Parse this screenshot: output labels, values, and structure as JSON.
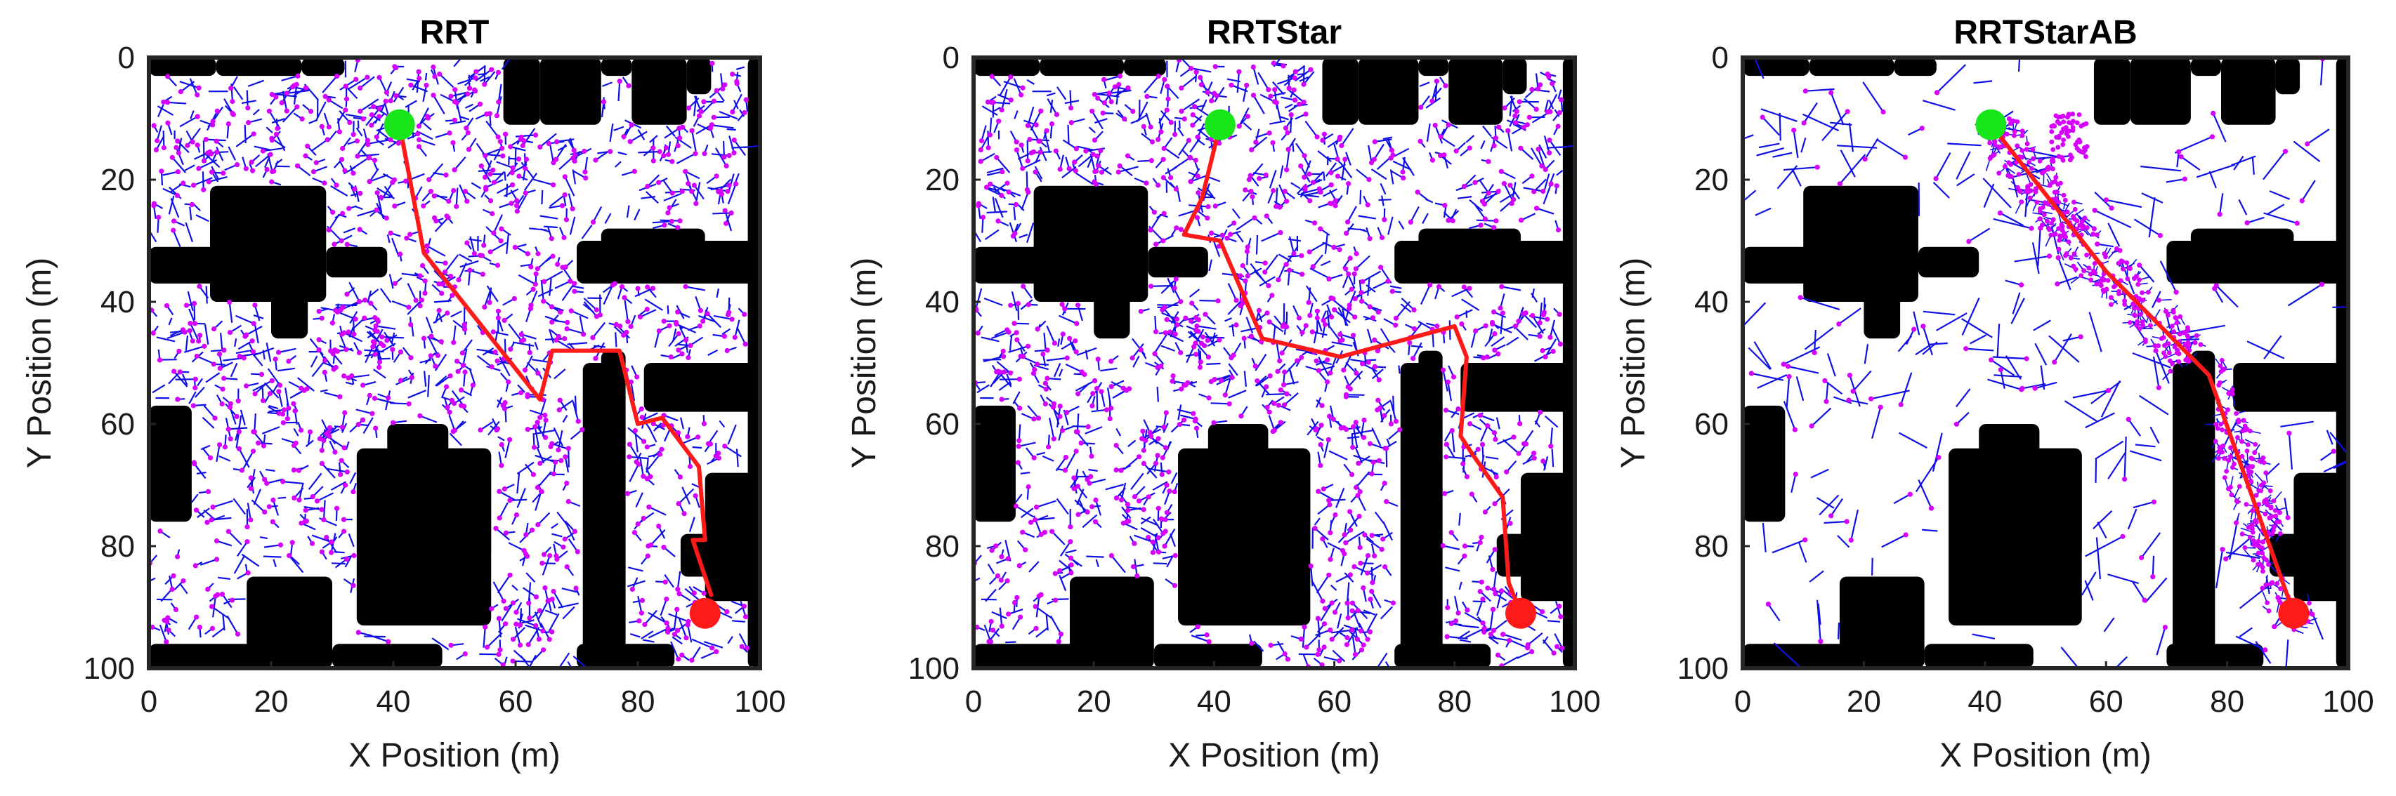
{
  "chart_data": [
    {
      "type": "scatter",
      "title": "RRT",
      "xlabel": "X Position (m)",
      "ylabel": "Y Position (m)",
      "xlim": [
        0,
        100
      ],
      "ylim": [
        0,
        100
      ],
      "y_reversed": true,
      "x_ticks": [
        "0",
        "20",
        "40",
        "60",
        "80",
        "100"
      ],
      "y_ticks": [
        "0",
        "20",
        "40",
        "60",
        "80",
        "100"
      ],
      "tree_density": "dense",
      "path": [
        [
          41,
          11
        ],
        [
          45,
          32
        ],
        [
          64,
          56
        ],
        [
          66,
          48
        ],
        [
          77,
          48
        ],
        [
          80,
          60
        ],
        [
          84,
          59
        ],
        [
          90,
          67
        ],
        [
          91,
          79
        ],
        [
          89,
          79
        ],
        [
          92,
          88
        ]
      ],
      "start": [
        41,
        11
      ],
      "goal": [
        91,
        91
      ]
    },
    {
      "type": "scatter",
      "title": "RRTStar",
      "xlabel": "X Position (m)",
      "ylabel": "Y Position (m)",
      "xlim": [
        0,
        100
      ],
      "ylim": [
        0,
        100
      ],
      "y_reversed": true,
      "x_ticks": [
        "0",
        "20",
        "40",
        "60",
        "80",
        "100"
      ],
      "y_ticks": [
        "0",
        "20",
        "40",
        "60",
        "80",
        "100"
      ],
      "tree_density": "dense",
      "path": [
        [
          41,
          11
        ],
        [
          38,
          23
        ],
        [
          35,
          29
        ],
        [
          41,
          30
        ],
        [
          48,
          46
        ],
        [
          61,
          49
        ],
        [
          80,
          44
        ],
        [
          82,
          49
        ],
        [
          81,
          62
        ],
        [
          83,
          65
        ],
        [
          88,
          72
        ],
        [
          89,
          86
        ],
        [
          91,
          91
        ]
      ],
      "start": [
        41,
        11
      ],
      "goal": [
        91,
        91
      ]
    },
    {
      "type": "scatter",
      "title": "RRTStarAB",
      "xlabel": "X Position (m)",
      "ylabel": "Y Position (m)",
      "xlim": [
        0,
        100
      ],
      "ylim": [
        0,
        100
      ],
      "y_reversed": true,
      "x_ticks": [
        "0",
        "20",
        "40",
        "60",
        "80",
        "100"
      ],
      "y_ticks": [
        "0",
        "20",
        "40",
        "60",
        "80",
        "100"
      ],
      "tree_density": "sparse",
      "path": [
        [
          41,
          11
        ],
        [
          60,
          35
        ],
        [
          77,
          52
        ],
        [
          91,
          91
        ]
      ],
      "start": [
        41,
        11
      ],
      "goal": [
        91,
        91
      ]
    }
  ],
  "obstacles": [
    [
      0,
      0,
      11,
      3
    ],
    [
      11,
      0,
      25,
      3
    ],
    [
      25,
      0,
      32,
      3
    ],
    [
      58,
      0,
      64,
      11
    ],
    [
      64,
      0,
      74,
      11
    ],
    [
      74,
      0,
      79,
      3
    ],
    [
      79,
      0,
      88,
      11
    ],
    [
      88,
      0,
      92,
      6
    ],
    [
      98,
      0,
      100,
      100
    ],
    [
      10,
      21,
      29,
      40
    ],
    [
      20,
      37,
      26,
      46
    ],
    [
      0,
      31,
      14,
      37
    ],
    [
      29,
      31,
      39,
      36
    ],
    [
      70,
      30,
      99,
      37
    ],
    [
      74,
      28,
      91,
      32
    ],
    [
      0,
      57,
      7,
      76
    ],
    [
      71,
      50,
      78,
      100
    ],
    [
      74,
      48,
      78,
      52
    ],
    [
      81,
      50,
      100,
      58
    ],
    [
      91,
      68,
      100,
      89
    ],
    [
      87,
      78,
      93,
      85
    ],
    [
      34,
      64,
      56,
      93
    ],
    [
      39,
      60,
      49,
      66
    ],
    [
      47,
      64,
      56,
      82
    ],
    [
      16,
      85,
      30,
      100
    ],
    [
      0,
      96,
      17,
      100
    ],
    [
      30,
      96,
      48,
      100
    ],
    [
      70,
      96,
      86,
      100
    ]
  ],
  "colors": {
    "obstacle": "#000000",
    "tree": "#1010e6",
    "node": "#d500ff",
    "path": "#ff1a1a",
    "start": "#19e619",
    "goal": "#ff1a1a",
    "frame": "#262626"
  }
}
